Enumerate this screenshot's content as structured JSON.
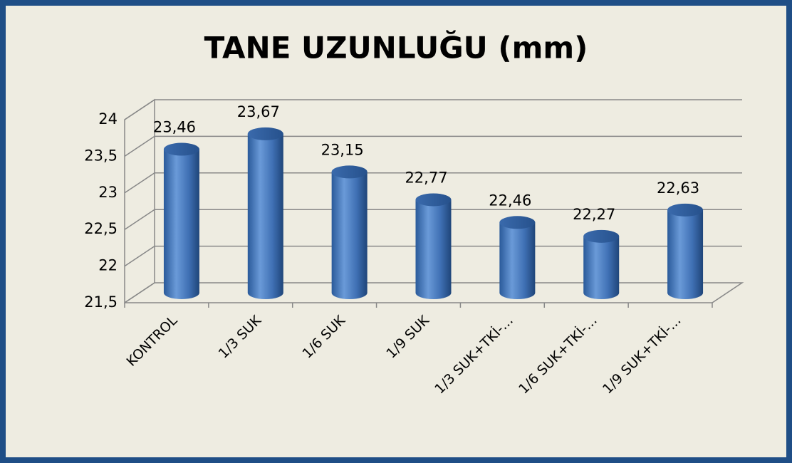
{
  "chart_data": {
    "type": "bar",
    "title": "TANE UZUNLUĞU (mm)",
    "categories": [
      "KONTROL",
      "1/3 SUK",
      "1/6 SUK",
      "1/9 SUK",
      "1/3 SUK+TKİ-...",
      "1/6 SUK+TKİ-...",
      "1/9 SUK+TKİ-..."
    ],
    "values": [
      23.46,
      23.67,
      23.15,
      22.77,
      22.46,
      22.27,
      22.63
    ],
    "value_labels": [
      "23,46",
      "23,67",
      "23,15",
      "22,77",
      "22,46",
      "22,27",
      "22,63"
    ],
    "color": "#4f81bd",
    "ylim": [
      21.5,
      24
    ],
    "yticks": [
      {
        "value": 21.5,
        "label": "21,5"
      },
      22,
      {
        "value": 22.5,
        "label": "22,5"
      },
      23,
      {
        "value": 23.5,
        "label": "23,5"
      },
      24
    ],
    "grid": true
  }
}
